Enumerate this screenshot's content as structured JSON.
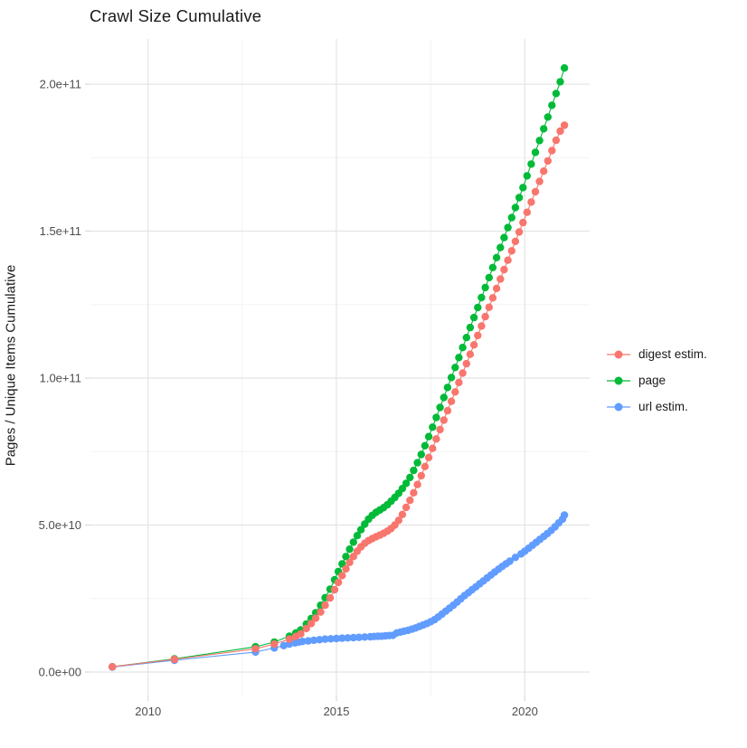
{
  "chart_data": {
    "type": "scatter",
    "title": "Crawl Size Cumulative",
    "xlabel": "",
    "ylabel": "Pages / Unique Items Cumulative",
    "legend_position": "right",
    "grid": true,
    "xlim": [
      2008.47,
      2021.72
    ],
    "ylim": [
      -8000000000.0,
      215400000000.0
    ],
    "x_ticks": [
      {
        "v": 2010,
        "label": "2010"
      },
      {
        "v": 2015,
        "label": "2015"
      },
      {
        "v": 2020,
        "label": "2020"
      }
    ],
    "y_ticks": [
      {
        "v": 0,
        "label": "0.0e+00"
      },
      {
        "v": 50000000000.0,
        "label": "5.0e+10"
      },
      {
        "v": 100000000000.0,
        "label": "1.0e+11"
      },
      {
        "v": 150000000000.0,
        "label": "1.5e+11"
      },
      {
        "v": 200000000000.0,
        "label": "2.0e+11"
      }
    ],
    "x_minor_ticks": [
      2012.5,
      2017.5
    ],
    "y_minor_ticks": [
      25000000000.0,
      75000000000.0,
      125000000000.0,
      175000000000.0
    ],
    "colors": {
      "grid_major": "#e4e4e4",
      "grid_minor": "#f3f3f3",
      "tick_mark": "#d9d9d9",
      "tick_label": "#4d4d4d",
      "text": "#1a1a1a",
      "background": "#ffffff"
    },
    "series": [
      {
        "name": "digest estim.",
        "color": "#F8766D",
        "points": [
          [
            2009.05,
            1800000000.0
          ],
          [
            2010.7,
            4300000000.0
          ],
          [
            2012.85,
            7900000000.0
          ],
          [
            2013.35,
            9500000000.0
          ],
          [
            2013.75,
            11200000000.0
          ],
          [
            2013.92,
            12100000000.0
          ],
          [
            2014.05,
            13000000000.0
          ],
          [
            2014.2,
            14800000000.0
          ],
          [
            2014.33,
            16500000000.0
          ],
          [
            2014.45,
            18300000000.0
          ],
          [
            2014.58,
            20400000000.0
          ],
          [
            2014.7,
            22700000000.0
          ],
          [
            2014.83,
            25200000000.0
          ],
          [
            2014.95,
            28000000000.0
          ],
          [
            2015.05,
            30500000000.0
          ],
          [
            2015.15,
            32800000000.0
          ],
          [
            2015.25,
            35100000000.0
          ],
          [
            2015.35,
            37300000000.0
          ],
          [
            2015.45,
            39300000000.0
          ],
          [
            2015.55,
            41100000000.0
          ],
          [
            2015.65,
            42600000000.0
          ],
          [
            2015.75,
            43800000000.0
          ],
          [
            2015.85,
            44700000000.0
          ],
          [
            2015.95,
            45400000000.0
          ],
          [
            2016.05,
            46000000000.0
          ],
          [
            2016.15,
            46600000000.0
          ],
          [
            2016.25,
            47200000000.0
          ],
          [
            2016.35,
            47900000000.0
          ],
          [
            2016.45,
            48800000000.0
          ],
          [
            2016.55,
            50000000000.0
          ],
          [
            2016.65,
            51600000000.0
          ],
          [
            2016.75,
            53600000000.0
          ],
          [
            2016.85,
            56000000000.0
          ],
          [
            2016.95,
            58400000000.0
          ],
          [
            2017.05,
            61000000000.0
          ],
          [
            2017.15,
            63800000000.0
          ],
          [
            2017.25,
            66800000000.0
          ],
          [
            2017.35,
            69900000000.0
          ],
          [
            2017.45,
            73000000000.0
          ],
          [
            2017.55,
            76100000000.0
          ],
          [
            2017.65,
            79300000000.0
          ],
          [
            2017.75,
            82500000000.0
          ],
          [
            2017.85,
            85700000000.0
          ],
          [
            2017.95,
            88900000000.0
          ],
          [
            2018.05,
            92100000000.0
          ],
          [
            2018.15,
            95300000000.0
          ],
          [
            2018.25,
            98500000000.0
          ],
          [
            2018.35,
            101700000000.0
          ],
          [
            2018.45,
            104900000000.0
          ],
          [
            2018.55,
            108100000000.0
          ],
          [
            2018.65,
            111300000000.0
          ],
          [
            2018.75,
            114500000000.0
          ],
          [
            2018.85,
            117700000000.0
          ],
          [
            2018.95,
            120900000000.0
          ],
          [
            2019.05,
            124100000000.0
          ],
          [
            2019.15,
            127300000000.0
          ],
          [
            2019.25,
            130500000000.0
          ],
          [
            2019.35,
            133700000000.0
          ],
          [
            2019.45,
            136900000000.0
          ],
          [
            2019.55,
            140100000000.0
          ],
          [
            2019.65,
            143300000000.0
          ],
          [
            2019.75,
            146500000000.0
          ],
          [
            2019.85,
            149700000000.0
          ],
          [
            2019.95,
            152900000000.0
          ],
          [
            2020.06,
            156400000000.0
          ],
          [
            2020.17,
            159900000000.0
          ],
          [
            2020.28,
            163400000000.0
          ],
          [
            2020.39,
            166900000000.0
          ],
          [
            2020.5,
            170400000000.0
          ],
          [
            2020.61,
            173900000000.0
          ],
          [
            2020.72,
            177400000000.0
          ],
          [
            2020.83,
            180900000000.0
          ],
          [
            2020.94,
            184000000000.0
          ],
          [
            2021.05,
            186000000000.0
          ]
        ]
      },
      {
        "name": "page",
        "color": "#00BA38",
        "points": [
          [
            2009.05,
            1800000000.0
          ],
          [
            2010.7,
            4500000000.0
          ],
          [
            2012.85,
            8600000000.0
          ],
          [
            2013.35,
            10200000000.0
          ],
          [
            2013.75,
            12200000000.0
          ],
          [
            2013.92,
            13300000000.0
          ],
          [
            2014.05,
            14300000000.0
          ],
          [
            2014.2,
            16300000000.0
          ],
          [
            2014.33,
            18200000000.0
          ],
          [
            2014.45,
            20200000000.0
          ],
          [
            2014.58,
            22700000000.0
          ],
          [
            2014.7,
            25300000000.0
          ],
          [
            2014.83,
            28200000000.0
          ],
          [
            2014.95,
            31400000000.0
          ],
          [
            2015.05,
            34200000000.0
          ],
          [
            2015.15,
            36800000000.0
          ],
          [
            2015.25,
            39300000000.0
          ],
          [
            2015.35,
            41800000000.0
          ],
          [
            2015.45,
            44200000000.0
          ],
          [
            2015.55,
            46400000000.0
          ],
          [
            2015.65,
            48400000000.0
          ],
          [
            2015.75,
            50300000000.0
          ],
          [
            2015.85,
            52000000000.0
          ],
          [
            2015.95,
            53300000000.0
          ],
          [
            2016.05,
            54300000000.0
          ],
          [
            2016.15,
            55100000000.0
          ],
          [
            2016.25,
            55900000000.0
          ],
          [
            2016.35,
            56900000000.0
          ],
          [
            2016.45,
            58100000000.0
          ],
          [
            2016.55,
            59400000000.0
          ],
          [
            2016.65,
            60800000000.0
          ],
          [
            2016.75,
            62400000000.0
          ],
          [
            2016.85,
            64200000000.0
          ],
          [
            2016.95,
            66200000000.0
          ],
          [
            2017.05,
            68600000000.0
          ],
          [
            2017.15,
            71200000000.0
          ],
          [
            2017.25,
            74000000000.0
          ],
          [
            2017.35,
            77000000000.0
          ],
          [
            2017.45,
            80100000000.0
          ],
          [
            2017.55,
            83300000000.0
          ],
          [
            2017.65,
            86600000000.0
          ],
          [
            2017.75,
            90000000000.0
          ],
          [
            2017.85,
            93400000000.0
          ],
          [
            2017.95,
            96800000000.0
          ],
          [
            2018.05,
            100200000000.0
          ],
          [
            2018.15,
            103600000000.0
          ],
          [
            2018.25,
            107000000000.0
          ],
          [
            2018.35,
            110400000000.0
          ],
          [
            2018.45,
            113800000000.0
          ],
          [
            2018.55,
            117200000000.0
          ],
          [
            2018.65,
            120600000000.0
          ],
          [
            2018.75,
            124000000000.0
          ],
          [
            2018.85,
            127400000000.0
          ],
          [
            2018.95,
            130800000000.0
          ],
          [
            2019.05,
            134200000000.0
          ],
          [
            2019.15,
            137600000000.0
          ],
          [
            2019.25,
            141000000000.0
          ],
          [
            2019.35,
            144400000000.0
          ],
          [
            2019.45,
            147800000000.0
          ],
          [
            2019.55,
            151200000000.0
          ],
          [
            2019.65,
            154600000000.0
          ],
          [
            2019.75,
            158000000000.0
          ],
          [
            2019.85,
            161400000000.0
          ],
          [
            2019.95,
            164800000000.0
          ],
          [
            2020.06,
            168800000000.0
          ],
          [
            2020.17,
            172800000000.0
          ],
          [
            2020.28,
            176800000000.0
          ],
          [
            2020.39,
            180800000000.0
          ],
          [
            2020.5,
            184800000000.0
          ],
          [
            2020.61,
            188800000000.0
          ],
          [
            2020.72,
            192800000000.0
          ],
          [
            2020.83,
            196800000000.0
          ],
          [
            2020.94,
            200800000000.0
          ],
          [
            2021.05,
            205500000000.0
          ]
        ]
      },
      {
        "name": "url estim.",
        "color": "#619CFF",
        "points": [
          [
            2009.05,
            1700000000.0
          ],
          [
            2010.7,
            4000000000.0
          ],
          [
            2012.85,
            6800000000.0
          ],
          [
            2013.35,
            8200000000.0
          ],
          [
            2013.6,
            9000000000.0
          ],
          [
            2013.75,
            9500000000.0
          ],
          [
            2013.9,
            9900000000.0
          ],
          [
            2014.0,
            10200000000.0
          ],
          [
            2014.1,
            10400000000.0
          ],
          [
            2014.25,
            10600000000.0
          ],
          [
            2014.4,
            10800000000.0
          ],
          [
            2014.55,
            11000000000.0
          ],
          [
            2014.7,
            11200000000.0
          ],
          [
            2014.85,
            11300000000.0
          ],
          [
            2015.0,
            11400000000.0
          ],
          [
            2015.15,
            11500000000.0
          ],
          [
            2015.3,
            11600000000.0
          ],
          [
            2015.45,
            11700000000.0
          ],
          [
            2015.6,
            11800000000.0
          ],
          [
            2015.75,
            11900000000.0
          ],
          [
            2015.9,
            12000000000.0
          ],
          [
            2016.0,
            12100000000.0
          ],
          [
            2016.1,
            12150000000.0
          ],
          [
            2016.2,
            12200000000.0
          ],
          [
            2016.3,
            12300000000.0
          ],
          [
            2016.4,
            12400000000.0
          ],
          [
            2016.5,
            12500000000.0
          ],
          [
            2016.6,
            13300000000.0
          ],
          [
            2016.7,
            13600000000.0
          ],
          [
            2016.8,
            13900000000.0
          ],
          [
            2016.9,
            14200000000.0
          ],
          [
            2017.0,
            14600000000.0
          ],
          [
            2017.1,
            15000000000.0
          ],
          [
            2017.2,
            15500000000.0
          ],
          [
            2017.3,
            16000000000.0
          ],
          [
            2017.4,
            16500000000.0
          ],
          [
            2017.5,
            17100000000.0
          ],
          [
            2017.6,
            17800000000.0
          ],
          [
            2017.7,
            18700000000.0
          ],
          [
            2017.8,
            19700000000.0
          ],
          [
            2017.9,
            20700000000.0
          ],
          [
            2018.0,
            21700000000.0
          ],
          [
            2018.1,
            22700000000.0
          ],
          [
            2018.2,
            23800000000.0
          ],
          [
            2018.3,
            24900000000.0
          ],
          [
            2018.4,
            26000000000.0
          ],
          [
            2018.5,
            27000000000.0
          ],
          [
            2018.6,
            28000000000.0
          ],
          [
            2018.7,
            29000000000.0
          ],
          [
            2018.8,
            30000000000.0
          ],
          [
            2018.9,
            31000000000.0
          ],
          [
            2019.0,
            32000000000.0
          ],
          [
            2019.1,
            33000000000.0
          ],
          [
            2019.2,
            34000000000.0
          ],
          [
            2019.3,
            35000000000.0
          ],
          [
            2019.4,
            35900000000.0
          ],
          [
            2019.5,
            36800000000.0
          ],
          [
            2019.6,
            37700000000.0
          ],
          [
            2019.75,
            39000000000.0
          ],
          [
            2019.9,
            40200000000.0
          ],
          [
            2020.0,
            41100000000.0
          ],
          [
            2020.1,
            42100000000.0
          ],
          [
            2020.2,
            43100000000.0
          ],
          [
            2020.3,
            44100000000.0
          ],
          [
            2020.4,
            45100000000.0
          ],
          [
            2020.5,
            46100000000.0
          ],
          [
            2020.6,
            47100000000.0
          ],
          [
            2020.7,
            48200000000.0
          ],
          [
            2020.8,
            49400000000.0
          ],
          [
            2020.9,
            50700000000.0
          ],
          [
            2021.0,
            52000000000.0
          ],
          [
            2021.05,
            53400000000.0
          ]
        ]
      }
    ]
  }
}
